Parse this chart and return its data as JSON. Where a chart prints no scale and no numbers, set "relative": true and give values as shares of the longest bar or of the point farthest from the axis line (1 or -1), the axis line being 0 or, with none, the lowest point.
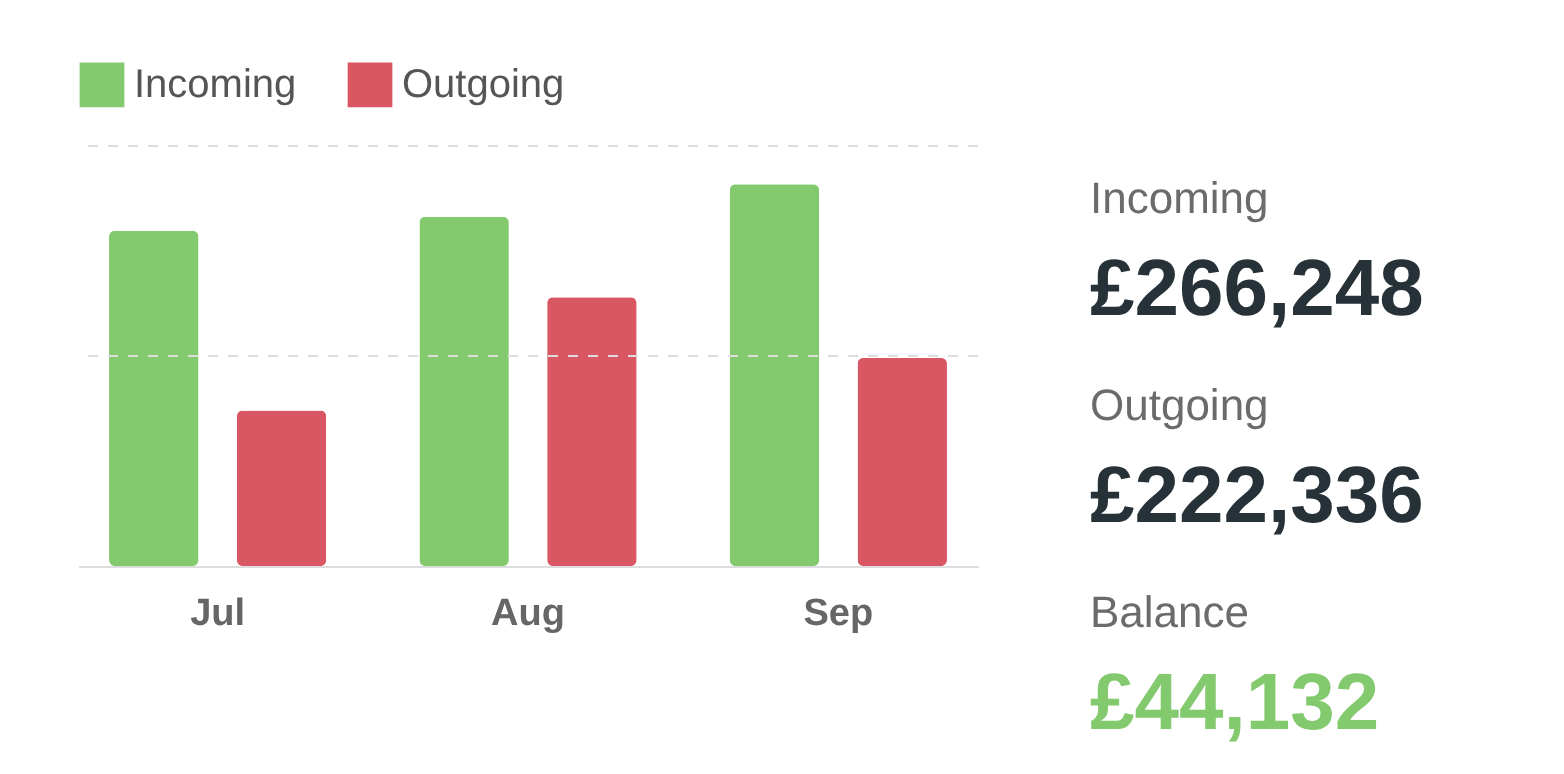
{
  "chart_data": [
    {
      "type": "bar",
      "categories": [
        "Jul",
        "Aug",
        "Sep"
      ],
      "relative": true,
      "legend": "top",
      "ref_lines": [
        {
          "axis": "y",
          "value": 0.55,
          "color": "#dddddd",
          "line_style": "dashed"
        },
        {
          "axis": "y",
          "value": 1.1,
          "color": "#dddddd",
          "line_style": "dashed"
        }
      ],
      "series": [
        {
          "name": "Incoming",
          "color": "#83c96e",
          "values": [
            0.878,
            0.915,
            1
          ]
        },
        {
          "name": "Outgoing",
          "color": "#d95763",
          "values": [
            0.407,
            0.704,
            0.545
          ]
        }
      ]
    },
    {
      "type": "other",
      "annotations": [
        "Incoming",
        "£266,248",
        "Outgoing",
        "£222,336",
        "Balance",
        "£44,132"
      ]
    }
  ]
}
